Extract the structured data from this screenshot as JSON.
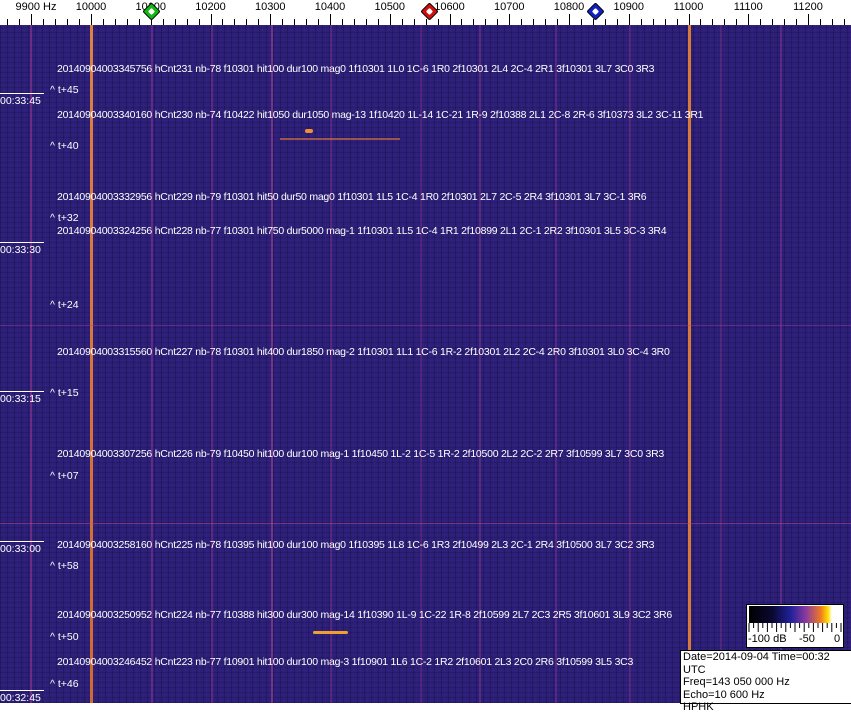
{
  "axis": {
    "unit_label": "9900 Hz",
    "ticks": [
      "10000",
      "10100",
      "10200",
      "10300",
      "10400",
      "10500",
      "10600",
      "10700",
      "10800",
      "10900",
      "11000",
      "11100",
      "11200"
    ],
    "markers": [
      {
        "name": "green-marker",
        "freq_hz": 10100,
        "color": "#11b811"
      },
      {
        "name": "red-marker",
        "freq_hz": 10565,
        "color": "#d01010"
      },
      {
        "name": "blue-marker",
        "freq_hz": 10843,
        "color": "#1020c0"
      }
    ]
  },
  "detections": [
    "20140904003345756 hCnt231 nb-78 f10301 hit100 dur100 mag0 1f10301 1L0 1C-6 1R0 2f10301 2L4 2C-4 2R1 3f10301 3L7 3C0 3R3",
    "20140904003340160 hCnt230 nb-74 f10422 hit1050 dur1050 mag-13 1f10420 1L-14 1C-21 1R-9 2f10388 2L1 2C-8 2R-6 3f10373 3L2 3C-11 3R1",
    "20140904003332956 hCnt229 nb-79 f10301 hit50 dur50 mag0 1f10301 1L5 1C-4 1R0 2f10301 2L7 2C-5 2R4 3f10301 3L7 3C-1 3R6",
    "20140904003324256 hCnt228 nb-77 f10301 hit750 dur5000 mag-1 1f10301 1L5 1C-4 1R1 2f10899 2L1 2C-1 2R2 3f10301 3L5 3C-3 3R4",
    "20140904003315560 hCnt227 nb-78 f10301 hit400 dur1850 mag-2 1f10301 1L1 1C-6 1R-2 2f10301 2L2 2C-4 2R0 3f10301 3L0 3C-4 3R0",
    "20140904003307256 hCnt226 nb-79 f10450 hit100 dur100 mag-1 1f10450 1L-2 1C-5 1R-2 2f10500 2L2 2C-2 2R7 3f10599 3L7 3C0 3R3",
    "20140904003258160 hCnt225 nb-78 f10395 hit100 dur100 mag0 1f10395 1L8 1C-6 1R3 2f10499 2L3 2C-1 2R4 3f10500 3L7 3C2 3R3",
    "20140904003250952 hCnt224 nb-77 f10388 hit300 dur300 mag-14 1f10390 1L-9 1C-22 1R-8 2f10599 2L7 2C3 2R5 3f10601 3L9 3C2 3R6",
    "20140904003246452 hCnt223 nb-77 f10901 hit100 dur100 mag-3 1f10901 1L6 1C-2 1R2 2f10601 2L3 2C0 2R6 3f10599 3L5 3C3"
  ],
  "time_offsets": [
    "^ t+45",
    "^ t+40",
    "^ t+32",
    "^ t+24",
    "^ t+15",
    "^ t+07",
    "^ t+58",
    "^ t+50",
    "^ t+46"
  ],
  "timestamps": [
    "00:33:45",
    "00:33:30",
    "00:33:15",
    "00:33:00",
    "00:32:45"
  ],
  "colorbar": {
    "labels": [
      "-100 dB",
      "-50",
      "0"
    ]
  },
  "info": {
    "date_time": "Date=2014-09-04 Time=00:32 UTC",
    "freq": "Freq=143 050 000 Hz",
    "echo": "Echo=10 600 Hz",
    "station": "HPHK"
  },
  "colors": {
    "background": "#2b1f78",
    "carrier": "#e07a30",
    "text": "#ffffff"
  }
}
